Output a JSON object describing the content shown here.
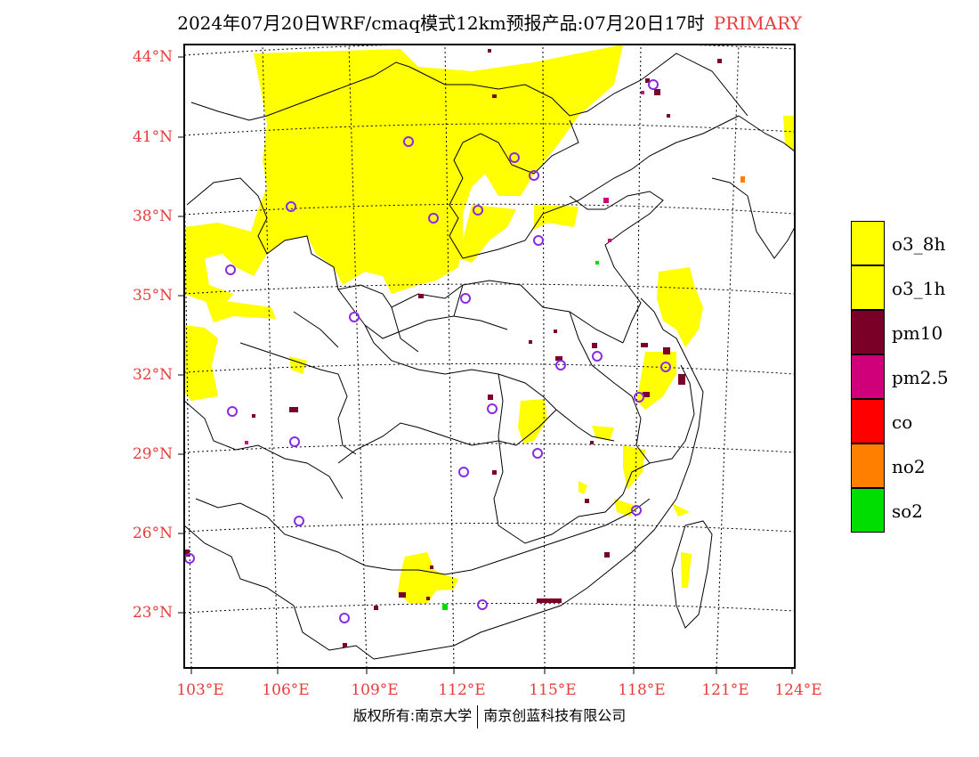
{
  "header": {
    "title": "2024年07月20日WRF/cmaq模式12km预报产品:07月20日17时",
    "tag": "PRIMARY"
  },
  "axes": {
    "lat_labels": [
      "44°N",
      "41°N",
      "38°N",
      "35°N",
      "32°N",
      "29°N",
      "26°N",
      "23°N"
    ],
    "lon_labels": [
      "103°E",
      "106°E",
      "109°E",
      "112°E",
      "115°E",
      "118°E",
      "121°E",
      "124°E"
    ]
  },
  "legend": {
    "items": [
      {
        "label": "o3_8h",
        "color": "#ffff00"
      },
      {
        "label": "o3_1h",
        "color": "#ffff00"
      },
      {
        "label": "pm10",
        "color": "#7a0028"
      },
      {
        "label": "pm2.5",
        "color": "#d0007a"
      },
      {
        "label": "co",
        "color": "#ff0000"
      },
      {
        "label": "no2",
        "color": "#ff7f00"
      },
      {
        "label": "so2",
        "color": "#00dd00"
      }
    ]
  },
  "footer": {
    "left": "版权所有:南京大学",
    "right": "南京创蓝科技有限公司"
  },
  "colors": {
    "accent": "#e83c3c",
    "ozone": "#ffff00",
    "station_marker": "#8a2be2"
  }
}
